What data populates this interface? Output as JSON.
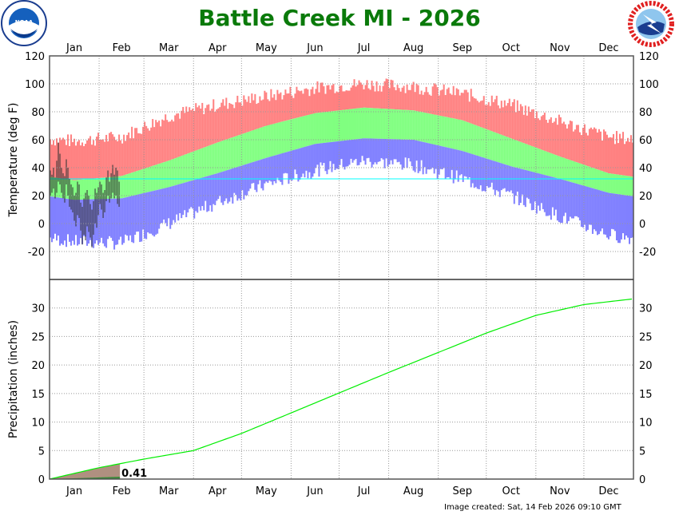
{
  "title": "Battle Creek MI - 2026",
  "footer": "Image created: Sat, 14 Feb 2026 09:10 GMT",
  "logos": {
    "left": "NOAA",
    "right": "NATIONAL WEATHER SERVICE"
  },
  "colors": {
    "record_high": "#ff8080",
    "normal_range": "#80ff80",
    "record_low": "#8080ff",
    "observed": "#333333",
    "freezing_line": "#00ffff",
    "normal_precip": "#00ee00",
    "observed_precip_fill": "#b09080",
    "title": "#0a7a0a"
  },
  "chart_data": [
    {
      "type": "bar",
      "panel": "temperature",
      "ylabel": "Temperature (deg F)",
      "ylim": [
        -40,
        120
      ],
      "yticks": [
        -20,
        0,
        20,
        40,
        60,
        80,
        100,
        120
      ],
      "months": [
        "Jan",
        "Feb",
        "Mar",
        "Apr",
        "May",
        "Jun",
        "Jul",
        "Aug",
        "Sep",
        "Oct",
        "Nov",
        "Dec"
      ],
      "grid": true,
      "freezing_line": 32,
      "normal_high_monthly": [
        31,
        34,
        45,
        58,
        70,
        79,
        83,
        81,
        74,
        61,
        48,
        36
      ],
      "normal_low_monthly": [
        17,
        18,
        26,
        36,
        47,
        57,
        61,
        60,
        52,
        41,
        32,
        22
      ],
      "record_high_monthly": [
        60,
        63,
        78,
        86,
        92,
        98,
        101,
        99,
        94,
        86,
        74,
        63
      ],
      "record_low_monthly": [
        -13,
        -14,
        0,
        15,
        28,
        38,
        45,
        42,
        32,
        20,
        5,
        -8
      ],
      "observed_high": [
        38,
        35,
        40,
        33,
        45,
        58,
        50,
        40,
        36,
        34,
        46,
        40,
        32,
        28,
        26,
        20,
        22,
        30,
        28,
        15,
        12,
        18,
        22,
        24,
        20,
        14,
        10,
        16,
        25,
        22,
        26,
        30,
        28,
        22,
        24,
        33,
        38,
        30,
        36,
        42,
        35,
        40,
        38,
        30
      ],
      "observed_low": [
        20,
        22,
        25,
        18,
        22,
        30,
        28,
        22,
        18,
        15,
        28,
        20,
        12,
        10,
        8,
        2,
        -2,
        6,
        4,
        -5,
        -15,
        -8,
        -12,
        -2,
        -6,
        -10,
        -17,
        -8,
        0,
        -3,
        6,
        14,
        10,
        4,
        8,
        16,
        20,
        15,
        18,
        22,
        18,
        20,
        14,
        12
      ]
    },
    {
      "type": "area",
      "panel": "precipitation",
      "ylabel": "Precipitation (inches)",
      "ylim": [
        0,
        35
      ],
      "yticks": [
        0,
        5,
        10,
        15,
        20,
        25,
        30
      ],
      "grid": true,
      "normal_cumulative_month_start": [
        0,
        2.0,
        3.5,
        5.0,
        8.0,
        11.6,
        15.1,
        18.7,
        22.2,
        25.6,
        28.7,
        30.6,
        31.6
      ],
      "observed_total": 0.41,
      "observed_label": "0.41",
      "observed_through_day": 44
    }
  ]
}
